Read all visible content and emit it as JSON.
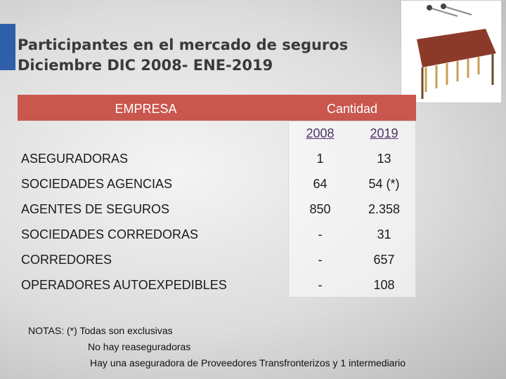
{
  "header": {
    "title": [
      "Participantes en el mercado de seguros",
      "Diciembre DIC 2008- ENE-2019"
    ]
  },
  "table": {
    "headers": [
      "EMPRESA",
      "Cantidad"
    ],
    "years": [
      "2008",
      "2019"
    ],
    "rows": [
      [
        "ASEGURADORAS",
        "1",
        "13"
      ],
      [
        "SOCIEDADES AGENCIAS",
        "64",
        "54 (*)"
      ],
      [
        "AGENTES DE SEGUROS",
        "850",
        "2.358"
      ],
      [
        "SOCIEDADES CORREDORAS",
        "-",
        "31"
      ],
      [
        "CORREDORES",
        "-",
        "657"
      ],
      [
        "OPERADORES AUTOEXPEDIBLES",
        "-",
        "108"
      ]
    ]
  },
  "notes": [
    "NOTAS: (*) Todas son exclusivas",
    "No hay reaseguradoras",
    "Hay una aseguradora de Proveedores Transfronterizos y  1 intermediario"
  ]
}
